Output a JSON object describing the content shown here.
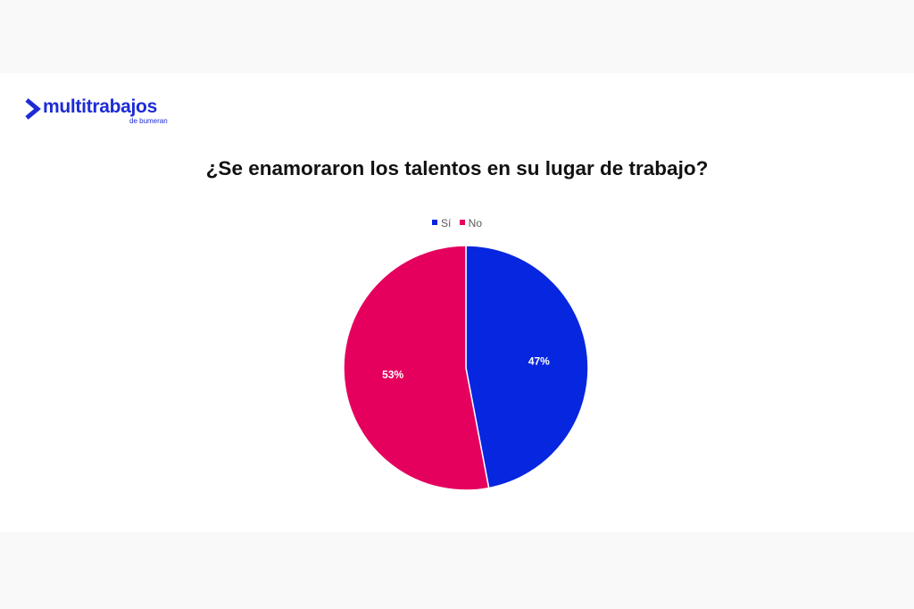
{
  "brand": {
    "name": "multitrabajos",
    "tagline": "de bumeran",
    "color": "#1d2bd6",
    "icon": "chevron-right-logo-icon"
  },
  "chart_data": {
    "type": "pie",
    "title": "¿Se enamoraron los talentos en su lugar de trabajo?",
    "legend_position": "top",
    "series": [
      {
        "name": "Sí",
        "value": 47,
        "label": "47%",
        "color": "#0726e0"
      },
      {
        "name": "No",
        "value": 53,
        "label": "53%",
        "color": "#e5005e"
      }
    ]
  }
}
